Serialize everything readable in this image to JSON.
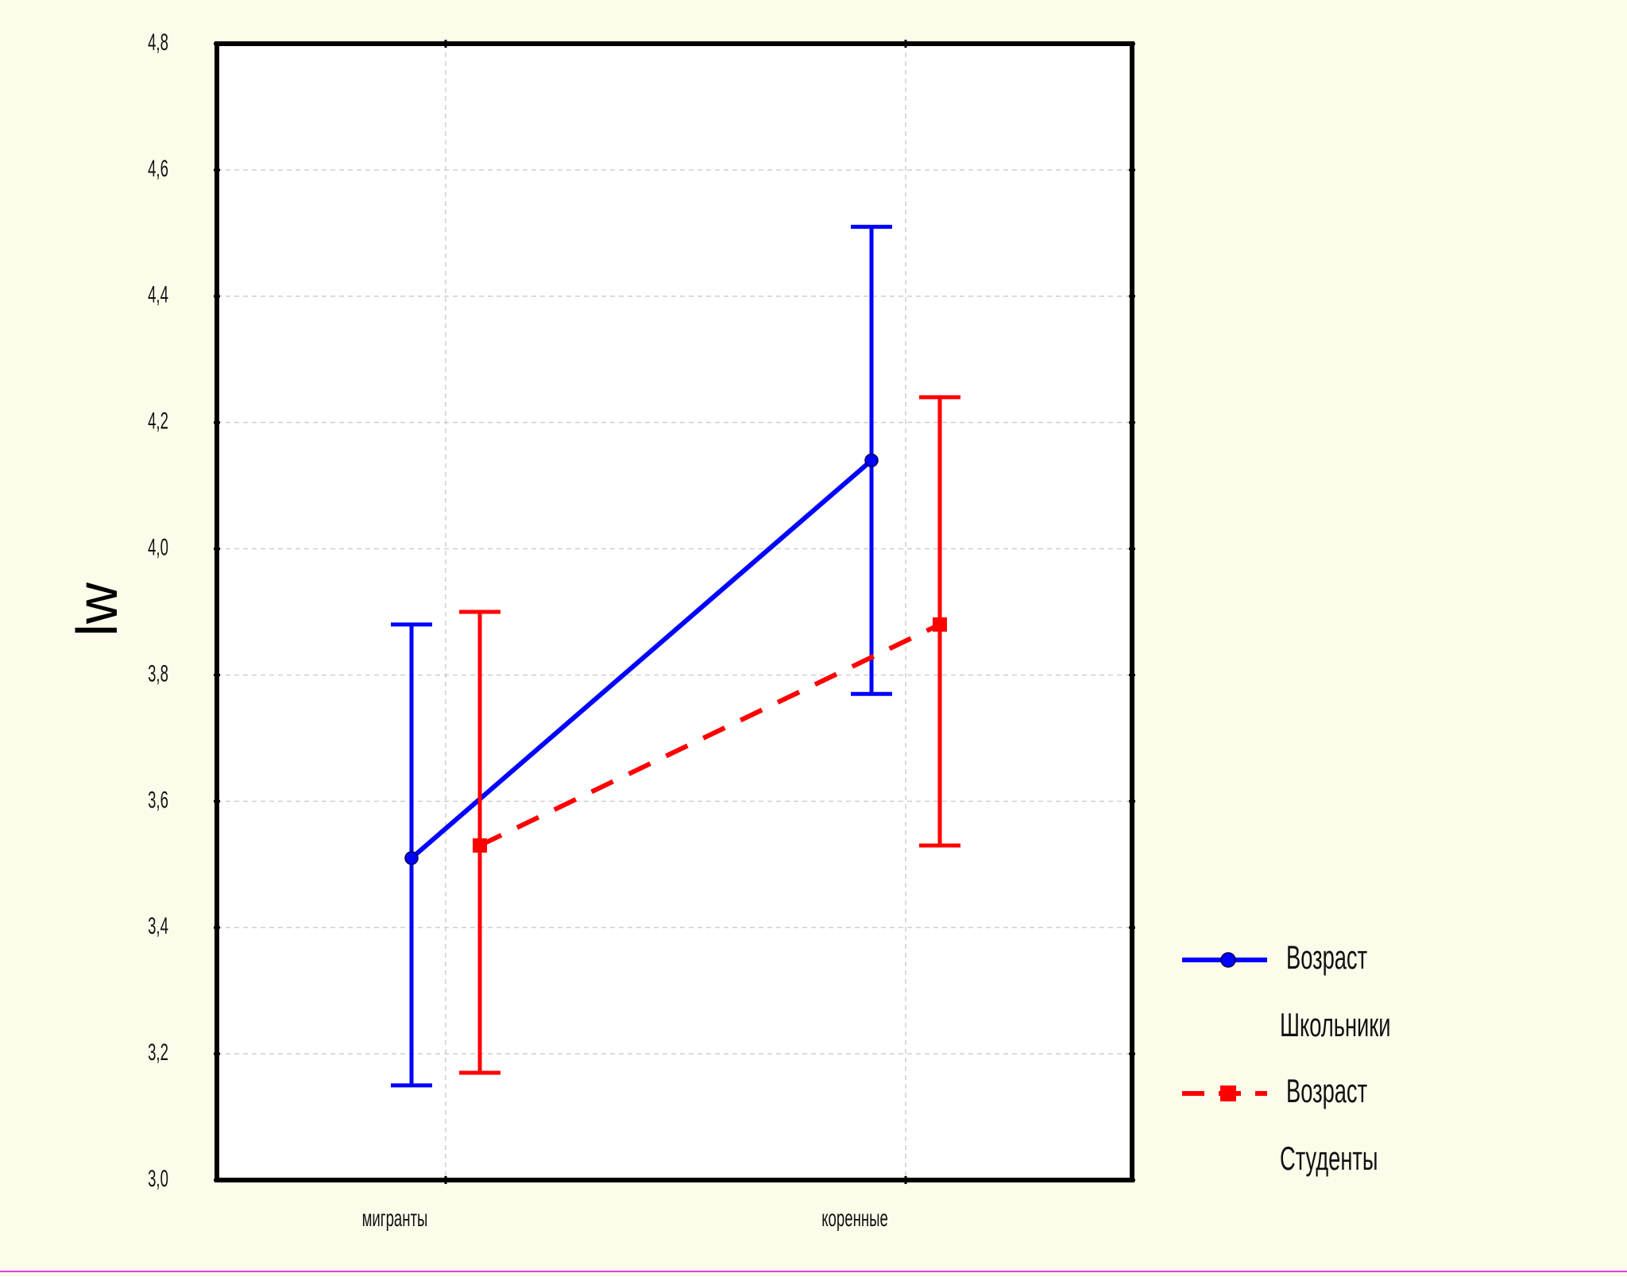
{
  "chart_data": {
    "type": "line",
    "title": "",
    "xlabel": "",
    "ylabel": "lw",
    "categories": [
      "мигранты",
      "коренные"
    ],
    "ylim": [
      3.0,
      4.8
    ],
    "yticks": [
      "3,0",
      "3,2",
      "3,4",
      "3,6",
      "3,8",
      "4,0",
      "4,2",
      "4,4",
      "4,6",
      "4,8"
    ],
    "ytick_values": [
      3.0,
      3.2,
      3.4,
      3.6,
      3.8,
      4.0,
      4.2,
      4.4,
      4.6,
      4.8
    ],
    "grid": true,
    "legend_position": "bottom-right",
    "error_bars": true,
    "series": [
      {
        "name": "Школьники",
        "legend_title": "Возраст",
        "color": "#0000ff",
        "line_style": "solid",
        "marker": "circle",
        "values": [
          3.51,
          4.14
        ],
        "lower": [
          3.15,
          3.77
        ],
        "upper": [
          3.88,
          4.51
        ]
      },
      {
        "name": "Студенты",
        "legend_title": "Возраст",
        "color": "#ff0000",
        "line_style": "dashed",
        "marker": "square",
        "values": [
          3.53,
          3.88
        ],
        "lower": [
          3.17,
          3.53
        ],
        "upper": [
          3.9,
          4.24
        ]
      }
    ]
  },
  "colors": {
    "background": "#fdfbea",
    "plot_background": "#ffffff",
    "bottom_border": "#e040e0"
  }
}
